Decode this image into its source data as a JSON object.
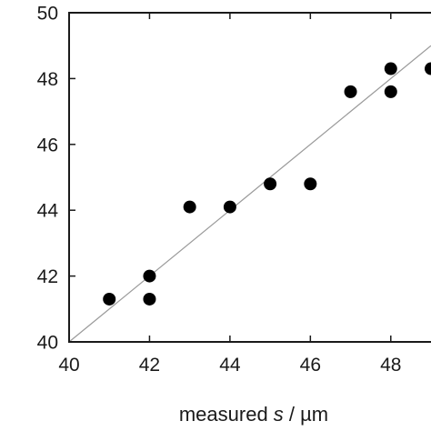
{
  "chart_data": {
    "type": "scatter",
    "title": "",
    "xlabel": "",
    "ylabel": "",
    "xlabel_parts": {
      "prefix": "measured ",
      "variable": "s",
      "suffix": " / µm"
    },
    "xlim": [
      40,
      49
    ],
    "ylim": [
      40,
      50
    ],
    "xticks": [
      40,
      42,
      44,
      46,
      48
    ],
    "yticks": [
      40,
      42,
      44,
      46,
      48,
      50
    ],
    "xtick_labels": [
      "40",
      "42",
      "44",
      "46",
      "48"
    ],
    "ytick_labels": [
      "40",
      "42",
      "44",
      "46",
      "48",
      "50"
    ],
    "grid": false,
    "legend": "none",
    "series": [
      {
        "points": [
          {
            "x": 41,
            "y": 41.3
          },
          {
            "x": 42,
            "y": 42.0
          },
          {
            "x": 42,
            "y": 41.3
          },
          {
            "x": 43,
            "y": 44.1
          },
          {
            "x": 44,
            "y": 44.1
          },
          {
            "x": 45,
            "y": 44.8
          },
          {
            "x": 46,
            "y": 44.8
          },
          {
            "x": 47,
            "y": 47.6
          },
          {
            "x": 48,
            "y": 48.3
          },
          {
            "x": 48,
            "y": 47.6
          },
          {
            "x": 49,
            "y": 48.3
          }
        ]
      }
    ],
    "reference_line": {
      "description": "y = x",
      "from": [
        40,
        40
      ],
      "to": [
        49,
        49
      ]
    },
    "colors": {
      "points": "#000000",
      "line": "#9a9a9a",
      "axes": "#1a1a1a"
    }
  }
}
